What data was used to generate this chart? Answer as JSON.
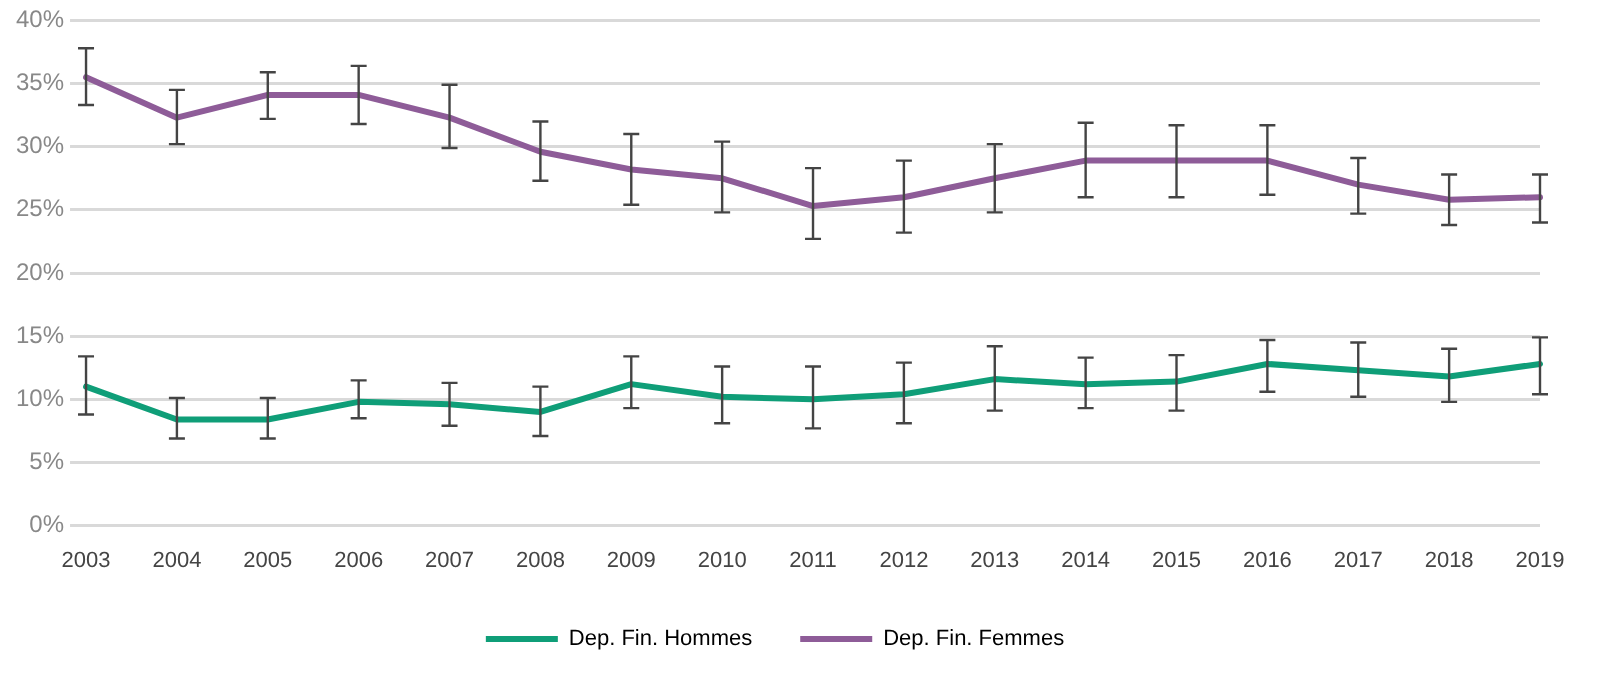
{
  "chart_data": {
    "type": "line",
    "categories": [
      "2003",
      "2004",
      "2005",
      "2006",
      "2007",
      "2008",
      "2009",
      "2010",
      "2011",
      "2012",
      "2013",
      "2014",
      "2015",
      "2016",
      "2017",
      "2018",
      "2019"
    ],
    "series": [
      {
        "name": "Dep. Fin. Hommes",
        "color": "#0f9e78",
        "values": [
          11.0,
          8.4,
          8.4,
          9.8,
          9.6,
          9.0,
          11.2,
          10.2,
          10.0,
          10.4,
          11.6,
          11.2,
          11.4,
          12.8,
          12.3,
          11.8,
          12.8
        ],
        "errors": [
          [
            8.8,
            13.4
          ],
          [
            6.9,
            10.1
          ],
          [
            6.9,
            10.1
          ],
          [
            8.5,
            11.5
          ],
          [
            7.9,
            11.3
          ],
          [
            7.1,
            11.0
          ],
          [
            9.3,
            13.4
          ],
          [
            8.1,
            12.6
          ],
          [
            7.7,
            12.6
          ],
          [
            8.1,
            12.9
          ],
          [
            9.1,
            14.2
          ],
          [
            9.3,
            13.3
          ],
          [
            9.1,
            13.5
          ],
          [
            10.6,
            14.7
          ],
          [
            10.2,
            14.5
          ],
          [
            9.8,
            14.0
          ],
          [
            10.4,
            14.9
          ]
        ]
      },
      {
        "name": "Dep. Fin. Femmes",
        "color": "#8e5c98",
        "values": [
          35.5,
          32.3,
          34.1,
          34.1,
          32.3,
          29.6,
          28.2,
          27.5,
          25.3,
          26.0,
          27.5,
          28.9,
          28.9,
          28.9,
          27.0,
          25.8,
          26.0
        ],
        "errors": [
          [
            33.3,
            37.8
          ],
          [
            30.2,
            34.5
          ],
          [
            32.2,
            35.9
          ],
          [
            31.8,
            36.4
          ],
          [
            29.9,
            34.9
          ],
          [
            27.3,
            32.0
          ],
          [
            25.4,
            31.0
          ],
          [
            24.8,
            30.4
          ],
          [
            22.7,
            28.3
          ],
          [
            23.2,
            28.9
          ],
          [
            24.8,
            30.2
          ],
          [
            26.0,
            31.9
          ],
          [
            26.0,
            31.7
          ],
          [
            26.2,
            31.7
          ],
          [
            24.7,
            29.1
          ],
          [
            23.8,
            27.8
          ],
          [
            24.0,
            27.8
          ]
        ]
      }
    ],
    "ylim": [
      0,
      40
    ],
    "yticks": [
      {
        "value": 0,
        "label": "0%"
      },
      {
        "value": 5,
        "label": "5%"
      },
      {
        "value": 10,
        "label": "10%"
      },
      {
        "value": 15,
        "label": "15%"
      },
      {
        "value": 20,
        "label": "20%"
      },
      {
        "value": 25,
        "label": "25%"
      },
      {
        "value": 30,
        "label": "30%"
      },
      {
        "value": 35,
        "label": "35%"
      },
      {
        "value": 40,
        "label": "40%"
      }
    ],
    "grid": "y",
    "legend": "bottom",
    "marker": "none",
    "line_style": "solid"
  }
}
